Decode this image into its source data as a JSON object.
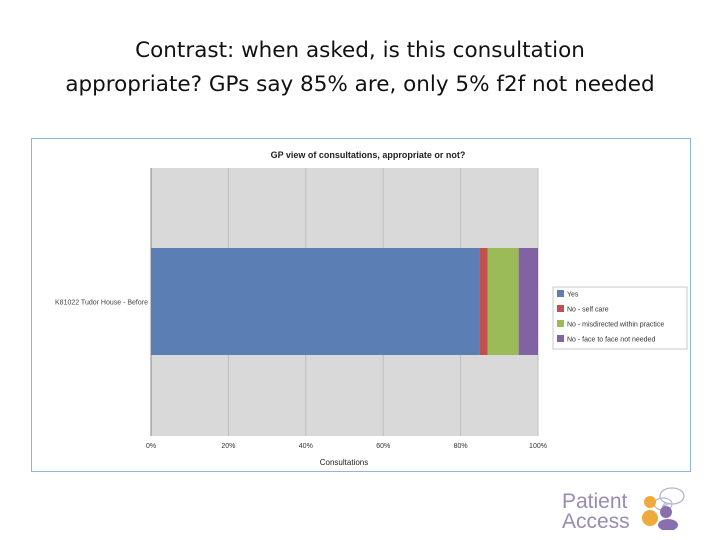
{
  "slide": {
    "title_line1": "Contrast:  when asked, is this consultation",
    "title_line2": "appropriate? GPs say 85% are, only 5% f2f not needed"
  },
  "logo": {
    "line1": "Patient",
    "line2": "Access"
  },
  "colors": {
    "frame": "#8eb4e3",
    "plot_bg": "#d9d9d9",
    "grid": "#bfbfbf"
  },
  "chart_data": {
    "type": "bar",
    "orientation": "horizontal",
    "stacked": true,
    "title": "GP view of consultations, appropriate or not?",
    "xlabel": "Consultations",
    "ylabel": "",
    "xlim": [
      0,
      1
    ],
    "x_ticks": [
      "0%",
      "20%",
      "40%",
      "60%",
      "80%",
      "100%"
    ],
    "categories": [
      "K81022 Tudor House - Before"
    ],
    "grid": true,
    "legend_position": "right",
    "series": [
      {
        "name": "Yes",
        "values": [
          0.85
        ],
        "color": "#5b7fb5"
      },
      {
        "name": "No - self care",
        "values": [
          0.02
        ],
        "color": "#c0504d"
      },
      {
        "name": "No - misdirected within practice",
        "values": [
          0.08
        ],
        "color": "#9bbb59"
      },
      {
        "name": "No - face to face not needed",
        "values": [
          0.05
        ],
        "color": "#8064a2"
      }
    ]
  }
}
